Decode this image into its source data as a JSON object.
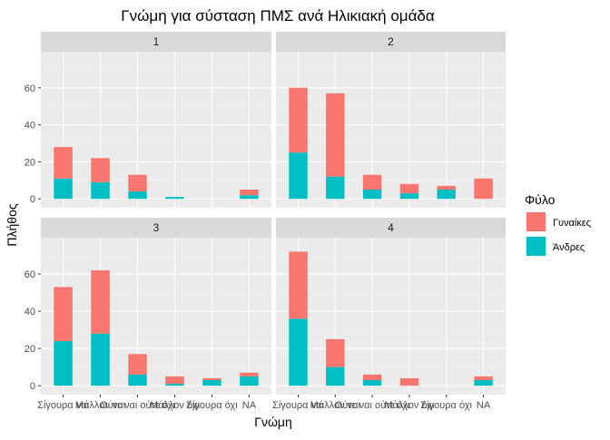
{
  "chart_data": {
    "type": "bar",
    "stacked": true,
    "title": "Γνώμη για σύσταση ΠΜΣ ανά Ηλικιακή ομάδα",
    "xlabel": "Γνώμη",
    "ylabel": "Πλήθος",
    "ylim": [
      0,
      75
    ],
    "yticks": [
      0,
      20,
      40,
      60
    ],
    "categories": [
      "Σίγουρα ναι",
      "Μάλλον ναι",
      "Ούτε ναι ούτε όχι",
      "Μάλλον όχι",
      "Σίγουρα όχι",
      "NA"
    ],
    "legend": {
      "title": "Φύλο",
      "position": "right",
      "items": [
        {
          "name": "Γυναίκες",
          "color": "#F8766D"
        },
        {
          "name": "Άνδρες",
          "color": "#00BFC4"
        }
      ]
    },
    "facets": [
      {
        "label": "1",
        "series": [
          {
            "name": "Γυναίκες",
            "values": [
              17,
              13,
              9,
              0,
              0,
              3
            ]
          },
          {
            "name": "Άνδρες",
            "values": [
              11,
              9,
              4,
              1,
              0,
              2
            ]
          }
        ]
      },
      {
        "label": "2",
        "series": [
          {
            "name": "Γυναίκες",
            "values": [
              35,
              45,
              8,
              5,
              2,
              11
            ]
          },
          {
            "name": "Άνδρες",
            "values": [
              25,
              12,
              5,
              3,
              5,
              0
            ]
          }
        ]
      },
      {
        "label": "3",
        "series": [
          {
            "name": "Γυναίκες",
            "values": [
              29,
              34,
              11,
              4,
              1,
              2
            ]
          },
          {
            "name": "Άνδρες",
            "values": [
              24,
              28,
              6,
              1,
              3,
              5
            ]
          }
        ]
      },
      {
        "label": "4",
        "series": [
          {
            "name": "Γυναίκες",
            "values": [
              36,
              15,
              3,
              4,
              0,
              2
            ]
          },
          {
            "name": "Άνδρες",
            "values": [
              36,
              10,
              3,
              0,
              0,
              3
            ]
          }
        ]
      }
    ],
    "grid": true
  }
}
